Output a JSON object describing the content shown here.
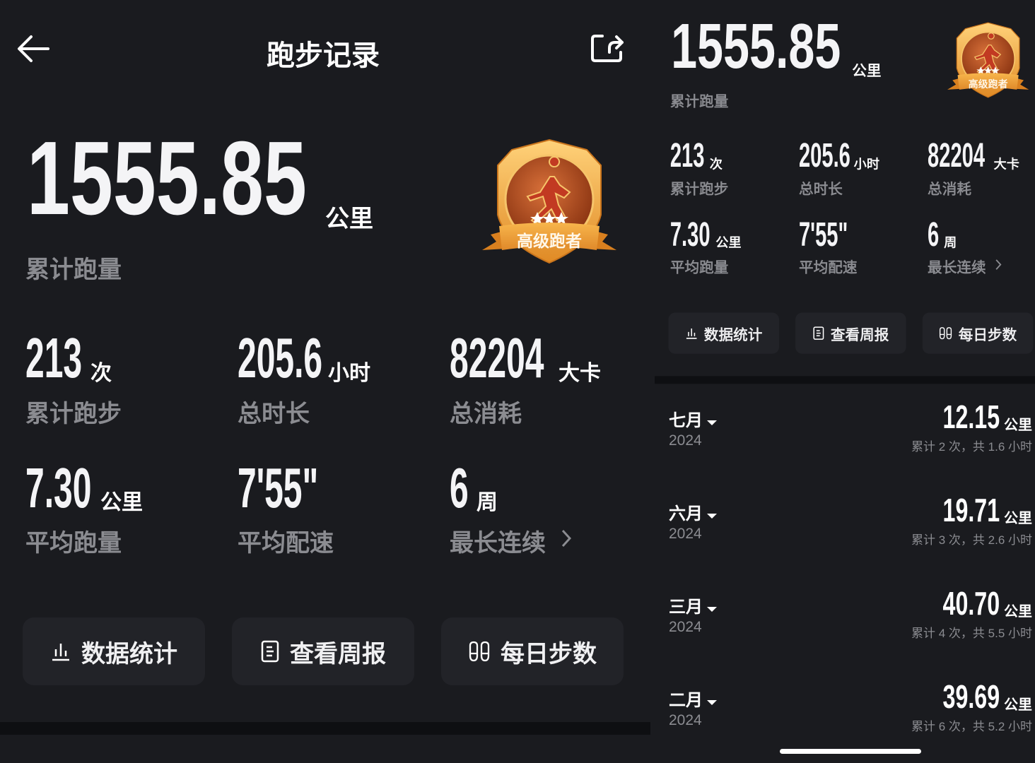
{
  "header": {
    "title": "跑步记录",
    "back_icon": "arrow-left-icon",
    "share_icon": "share-icon"
  },
  "summary": {
    "total_distance": "1555.85",
    "total_distance_unit": "公里",
    "total_distance_label": "累计跑量",
    "badge": {
      "label": "高级跑者",
      "stars": 3,
      "colors": {
        "gold": "#f2a93b",
        "bronze": "#b9501e"
      }
    },
    "stats": [
      {
        "value": "213",
        "unit": "次",
        "label": "累计跑步"
      },
      {
        "value": "205.6",
        "unit": "小时",
        "label": "总时长"
      },
      {
        "value": "82204",
        "unit": "大卡",
        "label": "总消耗"
      },
      {
        "value": "7.30",
        "unit": "公里",
        "label": "平均跑量"
      },
      {
        "value": "7'55\"",
        "unit": "",
        "label": "平均配速"
      },
      {
        "value": "6",
        "unit": "周",
        "label": "最长连续"
      }
    ],
    "buttons": [
      {
        "label": "数据统计",
        "icon": "bar-chart-icon"
      },
      {
        "label": "查看周报",
        "icon": "document-icon"
      },
      {
        "label": "每日步数",
        "icon": "footprints-icon"
      }
    ]
  },
  "months": [
    {
      "month": "七月",
      "year": "2024",
      "distance": "12.15",
      "unit": "公里",
      "summary": "累计 2 次，共 1.6 小时"
    },
    {
      "month": "六月",
      "year": "2024",
      "distance": "19.71",
      "unit": "公里",
      "summary": "累计 3 次，共 2.6 小时"
    },
    {
      "month": "三月",
      "year": "2024",
      "distance": "40.70",
      "unit": "公里",
      "summary": "累计 4 次，共 5.5 小时"
    },
    {
      "month": "二月",
      "year": "2024",
      "distance": "39.69",
      "unit": "公里",
      "summary": "累计 6 次，共 5.2 小时"
    }
  ],
  "colors": {
    "background": "#1a1b1f",
    "card": "#222328",
    "divider": "#0e0f12",
    "secondary_text": "#8b8c91"
  }
}
